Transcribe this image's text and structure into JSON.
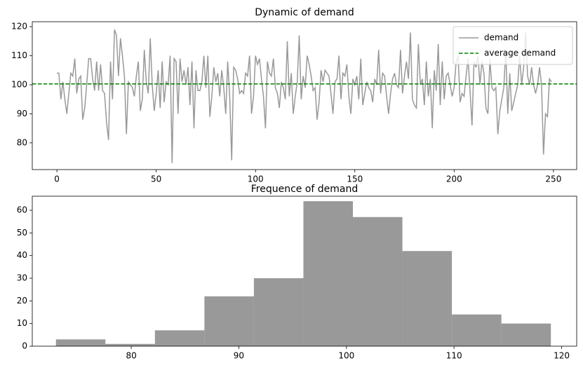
{
  "chart_data": [
    {
      "type": "line",
      "title": "Dynamic of demand",
      "x": [
        0,
        1,
        2,
        3,
        4,
        5,
        6,
        7,
        8,
        9,
        10,
        11,
        12,
        13,
        14,
        15,
        16,
        17,
        18,
        19,
        20,
        21,
        22,
        23,
        24,
        25,
        26,
        27,
        28,
        29,
        30,
        31,
        32,
        33,
        34,
        35,
        36,
        37,
        38,
        39,
        40,
        41,
        42,
        43,
        44,
        45,
        46,
        47,
        48,
        49,
        50,
        51,
        52,
        53,
        54,
        55,
        56,
        57,
        58,
        59,
        60,
        61,
        62,
        63,
        64,
        65,
        66,
        67,
        68,
        69,
        70,
        71,
        72,
        73,
        74,
        75,
        76,
        77,
        78,
        79,
        80,
        81,
        82,
        83,
        84,
        85,
        86,
        87,
        88,
        89,
        90,
        91,
        92,
        93,
        94,
        95,
        96,
        97,
        98,
        99,
        100,
        101,
        102,
        103,
        104,
        105,
        106,
        107,
        108,
        109,
        110,
        111,
        112,
        113,
        114,
        115,
        116,
        117,
        118,
        119,
        120,
        121,
        122,
        123,
        124,
        125,
        126,
        127,
        128,
        129,
        130,
        131,
        132,
        133,
        134,
        135,
        136,
        137,
        138,
        139,
        140,
        141,
        142,
        143,
        144,
        145,
        146,
        147,
        148,
        149,
        150,
        151,
        152,
        153,
        154,
        155,
        156,
        157,
        158,
        159,
        160,
        161,
        162,
        163,
        164,
        165,
        166,
        167,
        168,
        169,
        170,
        171,
        172,
        173,
        174,
        175,
        176,
        177,
        178,
        179,
        180,
        181,
        182,
        183,
        184,
        185,
        186,
        187,
        188,
        189,
        190,
        191,
        192,
        193,
        194,
        195,
        196,
        197,
        198,
        199,
        200,
        201,
        202,
        203,
        204,
        205,
        206,
        207,
        208,
        209,
        210,
        211,
        212,
        213,
        214,
        215,
        216,
        217,
        218,
        219,
        220,
        221,
        222,
        223,
        224,
        225,
        226,
        227,
        228,
        229,
        230,
        231,
        232,
        233,
        234,
        235,
        236,
        237,
        238,
        239,
        240,
        241,
        242,
        243,
        244,
        245,
        246,
        247,
        248,
        249
      ],
      "series": [
        {
          "name": "demand",
          "color": "#999999",
          "values": [
            104,
            104,
            95,
            101,
            95,
            90,
            97,
            104,
            103,
            109,
            97,
            102,
            103,
            88,
            92,
            100,
            109,
            109,
            102,
            98,
            108,
            98,
            107,
            98,
            97,
            87,
            81,
            108,
            95,
            119,
            117,
            103,
            116,
            110,
            103,
            83,
            101,
            100,
            99,
            96,
            103,
            108,
            91,
            95,
            112,
            101,
            97,
            116,
            100,
            91,
            97,
            105,
            92,
            108,
            94,
            101,
            100,
            110,
            73,
            109,
            108,
            90,
            109,
            101,
            105,
            100,
            106,
            93,
            108,
            85,
            105,
            98,
            98,
            101,
            110,
            99,
            110,
            89,
            96,
            106,
            101,
            104,
            96,
            105,
            99,
            90,
            108,
            96,
            74,
            106,
            105,
            102,
            97,
            98,
            97,
            104,
            103,
            110,
            90,
            96,
            110,
            107,
            109,
            102,
            96,
            85,
            108,
            104,
            103,
            109,
            99,
            97,
            92,
            101,
            99,
            95,
            115,
            96,
            104,
            90,
            96,
            101,
            117,
            95,
            103,
            99,
            110,
            107,
            103,
            98,
            99,
            88,
            94,
            105,
            101,
            105,
            104,
            103,
            97,
            90,
            101,
            102,
            110,
            95,
            104,
            103,
            107,
            96,
            90,
            102,
            100,
            103,
            95,
            109,
            93,
            97,
            101,
            99,
            98,
            94,
            102,
            100,
            112,
            97,
            104,
            103,
            96,
            90,
            97,
            102,
            104,
            100,
            99,
            112,
            97,
            103,
            108,
            102,
            118,
            95,
            93,
            92,
            114,
            100,
            102,
            93,
            108,
            96,
            102,
            85,
            105,
            98,
            114,
            93,
            108,
            95,
            103,
            104,
            100,
            96,
            99,
            108,
            110,
            94,
            97,
            96,
            103,
            109,
            98,
            86,
            108,
            106,
            110,
            100,
            108,
            104,
            92,
            90,
            109,
            99,
            98,
            99,
            83,
            91,
            95,
            99,
            112,
            90,
            104,
            91,
            94,
            97,
            100,
            110,
            100,
            106,
            118,
            103,
            100,
            106,
            100,
            97,
            100,
            106,
            100,
            76,
            90,
            89,
            102,
            101
          ]
        }
      ],
      "average": {
        "name": "average demand",
        "value": 100.3,
        "color": "#008000"
      },
      "legend": "upper right",
      "xlim": [
        -12.4,
        261.7
      ],
      "xticks": [
        0,
        50,
        100,
        150,
        200,
        250
      ],
      "ylim": [
        70.8,
        121.7
      ],
      "yticks": [
        80,
        90,
        100,
        110,
        120
      ]
    },
    {
      "type": "histogram",
      "title": "Frequence of demand",
      "color": "#999999",
      "bins": [
        73,
        77.6,
        82.2,
        86.8,
        91.4,
        96,
        100.6,
        105.2,
        109.8,
        114.4,
        119
      ],
      "values": [
        3,
        1,
        7,
        22,
        30,
        64,
        57,
        42,
        14,
        10
      ],
      "xlim": [
        70.8,
        121.4
      ],
      "xticks": [
        80,
        90,
        100,
        110,
        120
      ],
      "ylim": [
        0,
        66.2
      ],
      "yticks": [
        0,
        10,
        20,
        30,
        40,
        50,
        60
      ]
    }
  ]
}
